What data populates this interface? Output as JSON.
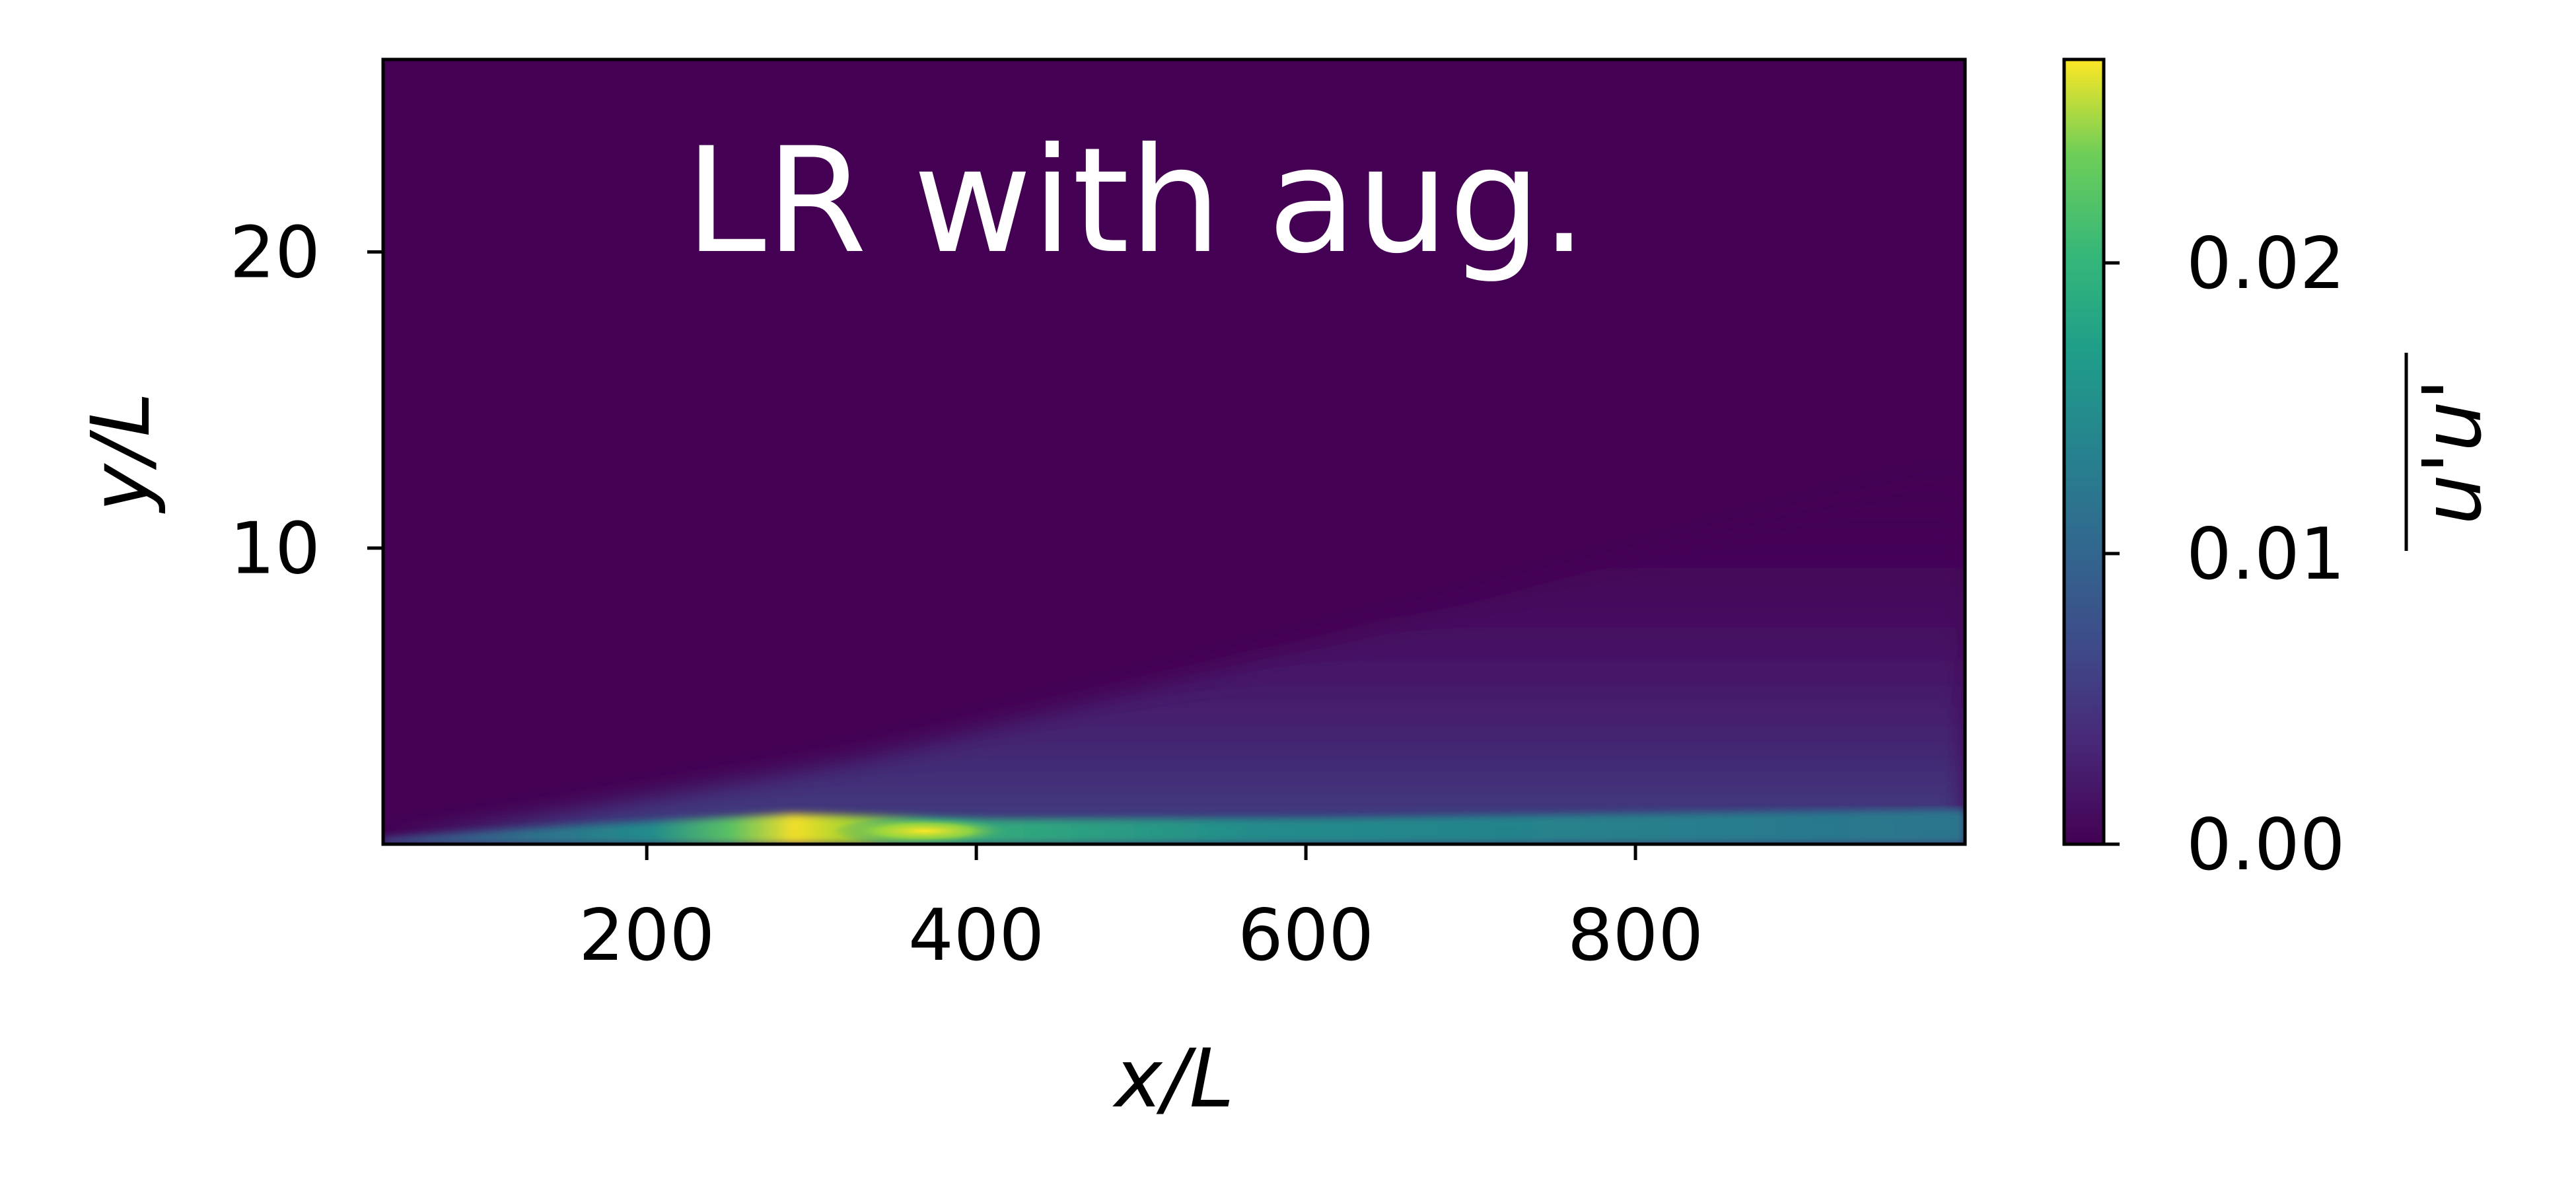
{
  "chart_data": {
    "type": "heatmap",
    "title": "",
    "annotation": "LR with aug.",
    "xlabel": "x/L",
    "ylabel": "y/L",
    "xlim": [
      40,
      1000
    ],
    "ylim": [
      0,
      26.5
    ],
    "xticks": [
      200,
      400,
      600,
      800
    ],
    "yticks": [
      10,
      20
    ],
    "colorbar": {
      "label": "u'u'",
      "overline": true,
      "range": [
        0,
        0.027
      ],
      "ticks": [
        "0.00",
        "0.01",
        "0.02"
      ],
      "tick_values": [
        0,
        0.01,
        0.02
      ],
      "colormap": "viridis"
    },
    "field_description": {
      "shear_layer_peak": {
        "x": 340,
        "y": 0.5,
        "value": 0.027
      },
      "background_value": 0.0,
      "far_downstream_near_wall_value": 0.007
    }
  },
  "colors": {
    "viridis_low": "#440154",
    "viridis_mid": "#21918c",
    "viridis_high": "#fde725"
  }
}
